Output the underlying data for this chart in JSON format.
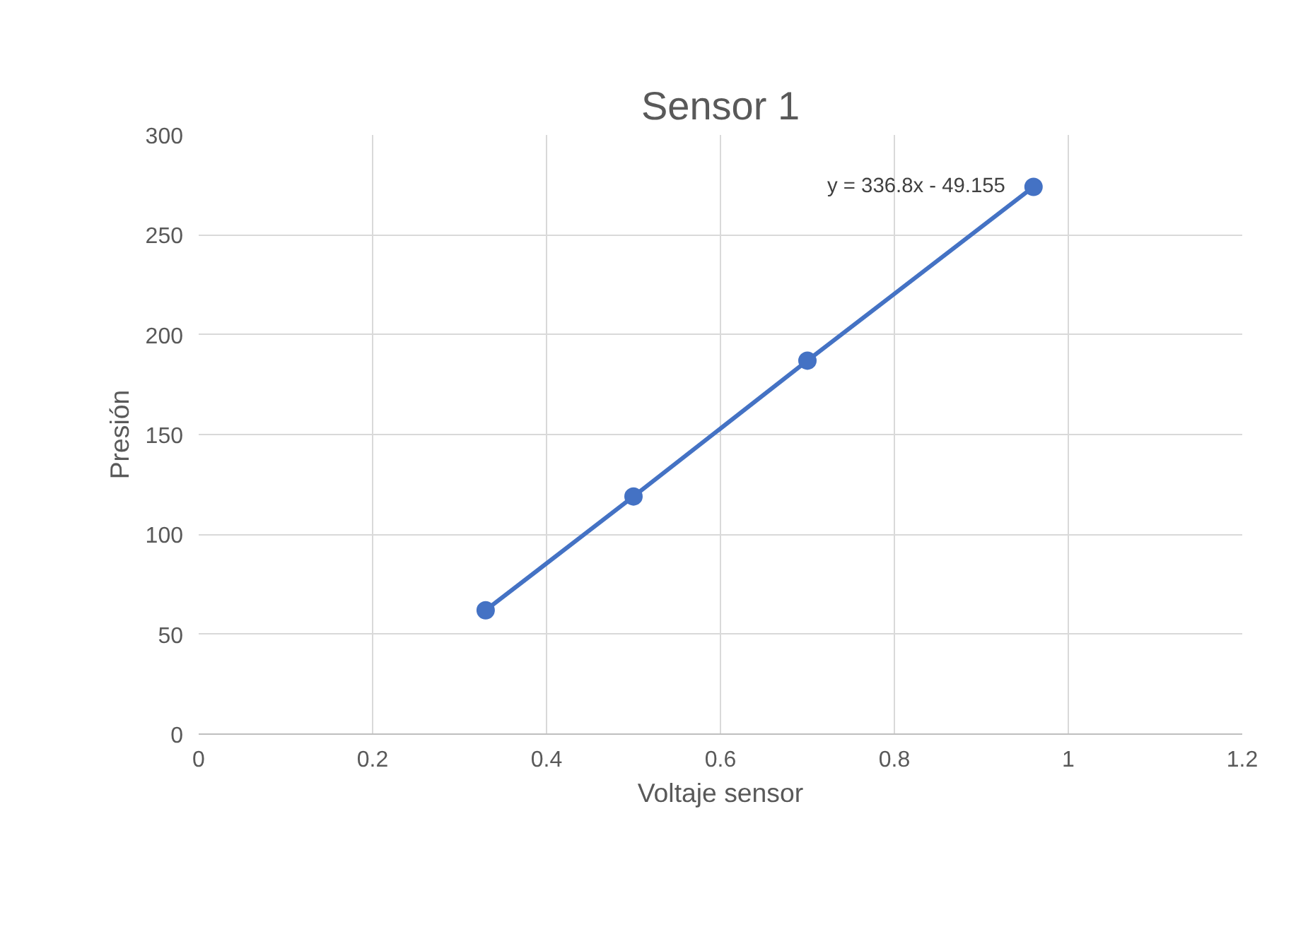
{
  "chart_data": {
    "type": "line",
    "title": "Sensor 1",
    "xlabel": "Voltaje sensor",
    "ylabel": "Presión",
    "x": [
      0.33,
      0.5,
      0.7,
      0.96
    ],
    "series": [
      {
        "color": "#4472c4",
        "values": [
          62,
          119,
          187,
          274
        ]
      }
    ],
    "marker": "circle",
    "line_style": "solid",
    "xlim": [
      0,
      1.2
    ],
    "xticks": [
      0,
      0.2,
      0.4,
      0.6,
      0.8,
      1,
      1.2
    ],
    "ylim": [
      0,
      300
    ],
    "yticks": [
      0,
      50,
      100,
      150,
      200,
      250,
      300
    ],
    "grid": true,
    "annotations": [
      "y = 336.8x - 49.155"
    ]
  }
}
